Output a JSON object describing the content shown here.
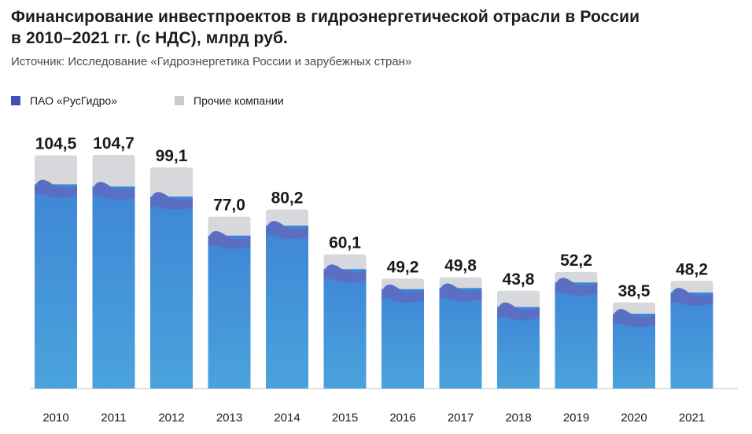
{
  "title_line1": "Финансирование инвестпроектов в гидроэнергетической отрасли в России",
  "title_line2": "в 2010–2021 гг. (с НДС), млрд руб.",
  "source": "Источник: Исследование «Гидроэнергетика России и зарубежных стран»",
  "colors": {
    "rushydro": "#3d8bd3",
    "rushydro_wave": "#5a6fc4",
    "other": "#d7d8dc",
    "legend_rushydro": "#4651b3",
    "legend_other": "#c9cacd"
  },
  "chart_data": {
    "type": "bar",
    "stacked": true,
    "categories": [
      "2010",
      "2011",
      "2012",
      "2013",
      "2014",
      "2015",
      "2016",
      "2017",
      "2018",
      "2019",
      "2020",
      "2021"
    ],
    "totals_labels": [
      "104,5",
      "104,7",
      "99,1",
      "77,0",
      "80,2",
      "60,1",
      "49,2",
      "49,8",
      "43,8",
      "52,2",
      "38,5",
      "48,2"
    ],
    "series": [
      {
        "name": "ПАО «РусГидро»",
        "values": [
          91.5,
          90.5,
          86.0,
          68.5,
          73.0,
          53.5,
          44.5,
          45.0,
          36.5,
          47.5,
          33.5,
          43.0
        ]
      },
      {
        "name": "Прочие компании",
        "values": [
          13.0,
          14.2,
          13.1,
          8.5,
          7.2,
          6.6,
          4.7,
          4.8,
          7.3,
          4.7,
          5.0,
          5.2
        ]
      }
    ],
    "ylim": [
      0,
      104.7
    ],
    "legend_position": "top-left",
    "grid": false
  }
}
